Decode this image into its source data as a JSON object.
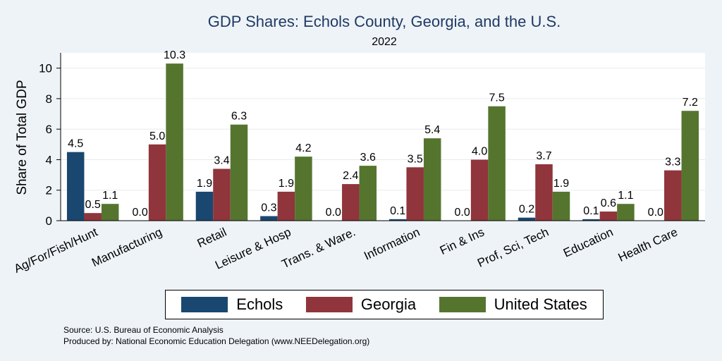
{
  "header": {
    "title": "GDP Shares: Echols County, Georgia, and the U.S.",
    "subtitle": "2022"
  },
  "footer": {
    "source": "Source: U.S. Bureau of Economic Analysis",
    "produced_by": "Produced by: National Economic Education Delegation (www.NEEDelegation.org)"
  },
  "chart_data": {
    "type": "bar",
    "title": "GDP Shares: Echols County, Georgia, and the U.S.",
    "subtitle": "2022",
    "xlabel": "",
    "ylabel": "Share of Total GDP",
    "ylim": [
      0,
      11
    ],
    "yticks": [
      0,
      2,
      4,
      6,
      8,
      10
    ],
    "grid": true,
    "legend_position": "bottom",
    "categories": [
      "Ag/For/Fish/Hunt",
      "Manufacturing",
      "Retail",
      "Leisure & Hosp",
      "Trans. & Ware.",
      "Information",
      "Fin & Ins",
      "Prof, Sci, Tech",
      "Education",
      "Health Care"
    ],
    "series": [
      {
        "name": "Echols",
        "color": "#1a476f",
        "values": [
          4.5,
          0.0,
          1.9,
          0.3,
          0.0,
          0.1,
          0.0,
          0.2,
          0.1,
          0.0
        ]
      },
      {
        "name": "Georgia",
        "color": "#90353b",
        "values": [
          0.5,
          5.0,
          3.4,
          1.9,
          2.4,
          3.5,
          4.0,
          3.7,
          0.6,
          3.3
        ]
      },
      {
        "name": "United States",
        "color": "#55752f",
        "values": [
          1.1,
          10.3,
          6.3,
          4.2,
          3.6,
          5.4,
          7.5,
          1.9,
          1.1,
          7.2
        ]
      }
    ]
  }
}
